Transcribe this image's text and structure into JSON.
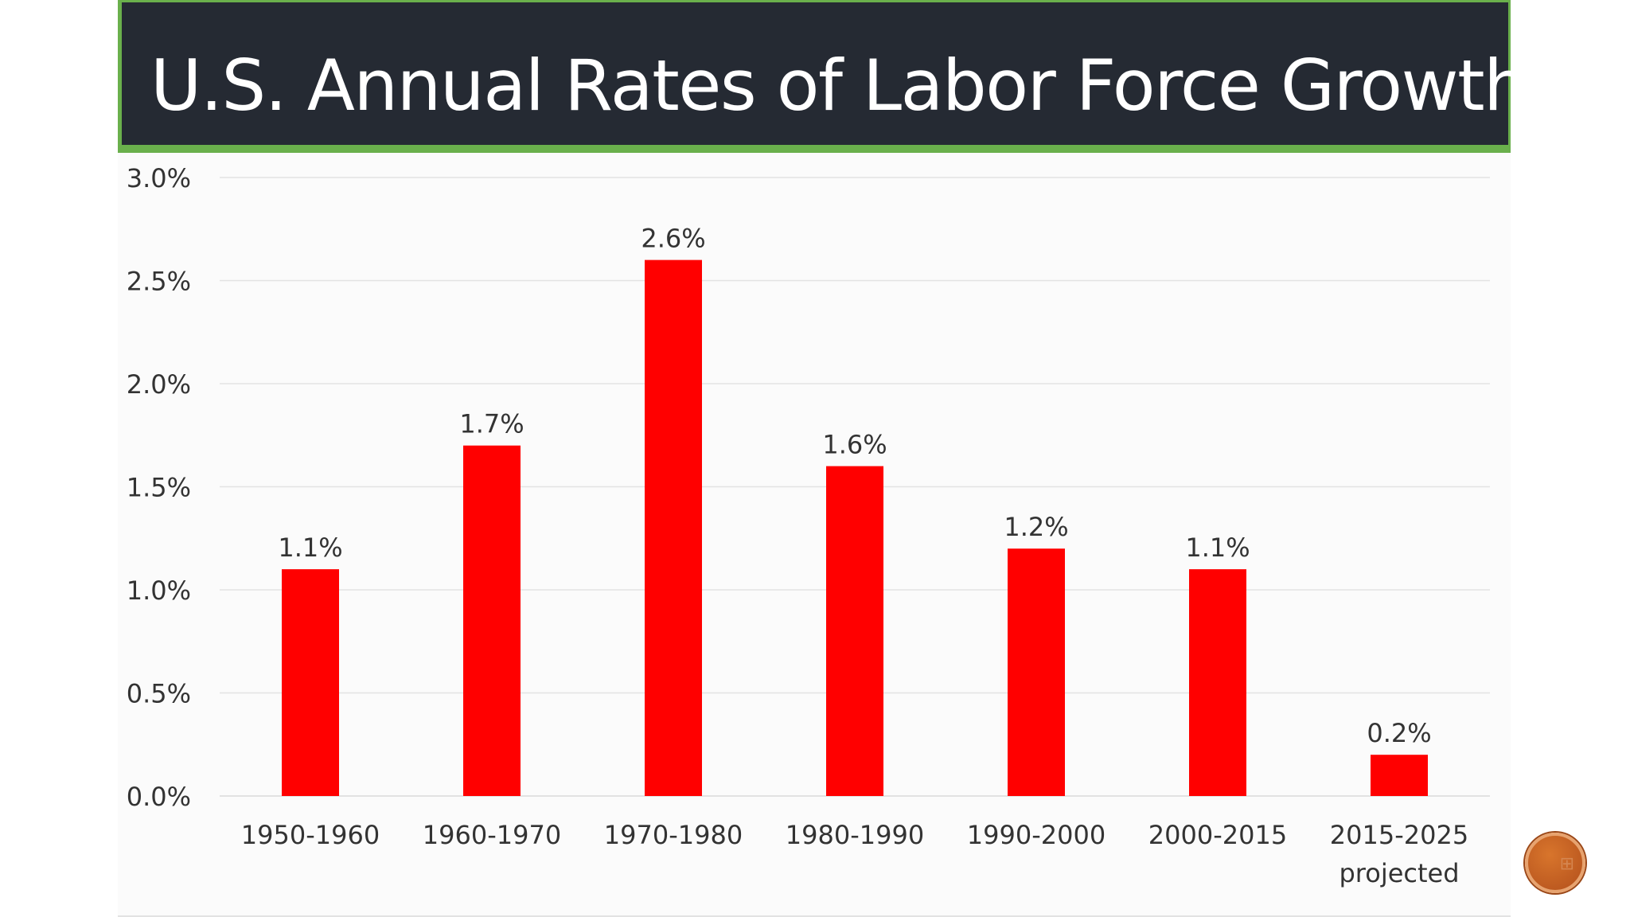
{
  "slide": {
    "title": "U.S. Annual Rates of Labor Force Growth",
    "nav_icon": "grid-icon"
  },
  "colors": {
    "title_bar": "#252a33",
    "accent": "#6ab04c",
    "bar": "#ff0000",
    "nav_button": "#c8622a"
  },
  "chart_data": {
    "type": "bar",
    "title": "",
    "xlabel": "",
    "ylabel": "",
    "categories": [
      "1950-1960",
      "1960-1970",
      "1970-1980",
      "1980-1990",
      "1990-2000",
      "2000-2015",
      "2015-2025 projected"
    ],
    "values": [
      1.1,
      1.7,
      2.6,
      1.6,
      1.2,
      1.1,
      0.2
    ],
    "data_labels": [
      "1.1%",
      "1.7%",
      "2.6%",
      "1.6%",
      "1.2%",
      "1.1%",
      "0.2%"
    ],
    "ylim": [
      0,
      3.0
    ],
    "yticks": [
      0,
      0.5,
      1.0,
      1.5,
      2.0,
      2.5,
      3.0
    ],
    "ytick_labels": [
      "0.0%",
      "0.5%",
      "1.0%",
      "1.5%",
      "2.0%",
      "2.5%",
      "3.0%"
    ],
    "grid": true,
    "legend": "none"
  }
}
